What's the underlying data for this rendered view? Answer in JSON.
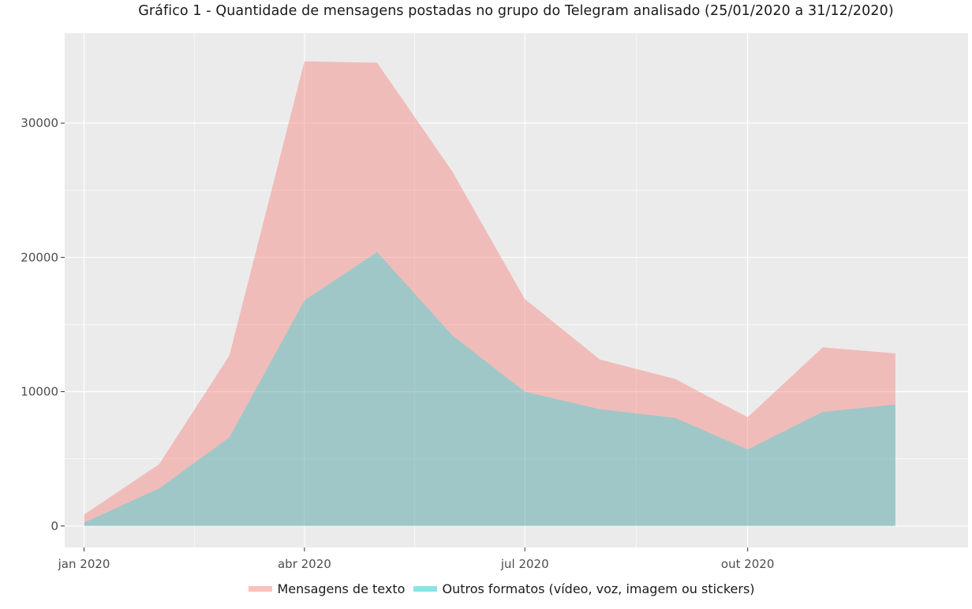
{
  "chart_data": {
    "type": "area",
    "title": "Gráfico 1 - Quantidade de mensagens postadas no grupo do Telegram analisado (25/01/2020 a 31/12/2020)",
    "xlabel": "",
    "ylabel": "",
    "x": [
      "2020-01-01",
      "2020-02-01",
      "2020-03-01",
      "2020-04-01",
      "2020-05-01",
      "2020-06-01",
      "2020-07-01",
      "2020-08-01",
      "2020-09-01",
      "2020-10-01",
      "2020-11-01",
      "2020-12-01"
    ],
    "series": [
      {
        "name": "Mensagens de texto",
        "color": "#F8766D",
        "values": [
          600,
          1800,
          6100,
          17800,
          14100,
          12200,
          6900,
          3700,
          2900,
          2400,
          4800,
          3800
        ]
      },
      {
        "name": "Outros formatos (vídeo, voz, imagem ou stickers)",
        "color": "#00BFC4",
        "values": [
          250,
          2800,
          6600,
          16800,
          20400,
          14200,
          10000,
          8700,
          8050,
          5700,
          8500,
          9050
        ]
      }
    ],
    "stacked": true,
    "xlim": [
      "2019-12-24",
      "2020-12-31"
    ],
    "ylim": [
      -1600,
      36700
    ],
    "yticks": [
      0,
      10000,
      20000,
      30000
    ],
    "ytick_labels": [
      "0",
      "10000",
      "20000",
      "30000"
    ],
    "xticks": [
      "2020-01-01",
      "2020-04-01",
      "2020-07-01",
      "2020-10-01"
    ],
    "xtick_labels": [
      "jan 2020",
      "abr 2020",
      "jul 2020",
      "out 2020"
    ],
    "grid": true,
    "legend_position": "bottom",
    "panel_background": "#EBEBEB"
  }
}
